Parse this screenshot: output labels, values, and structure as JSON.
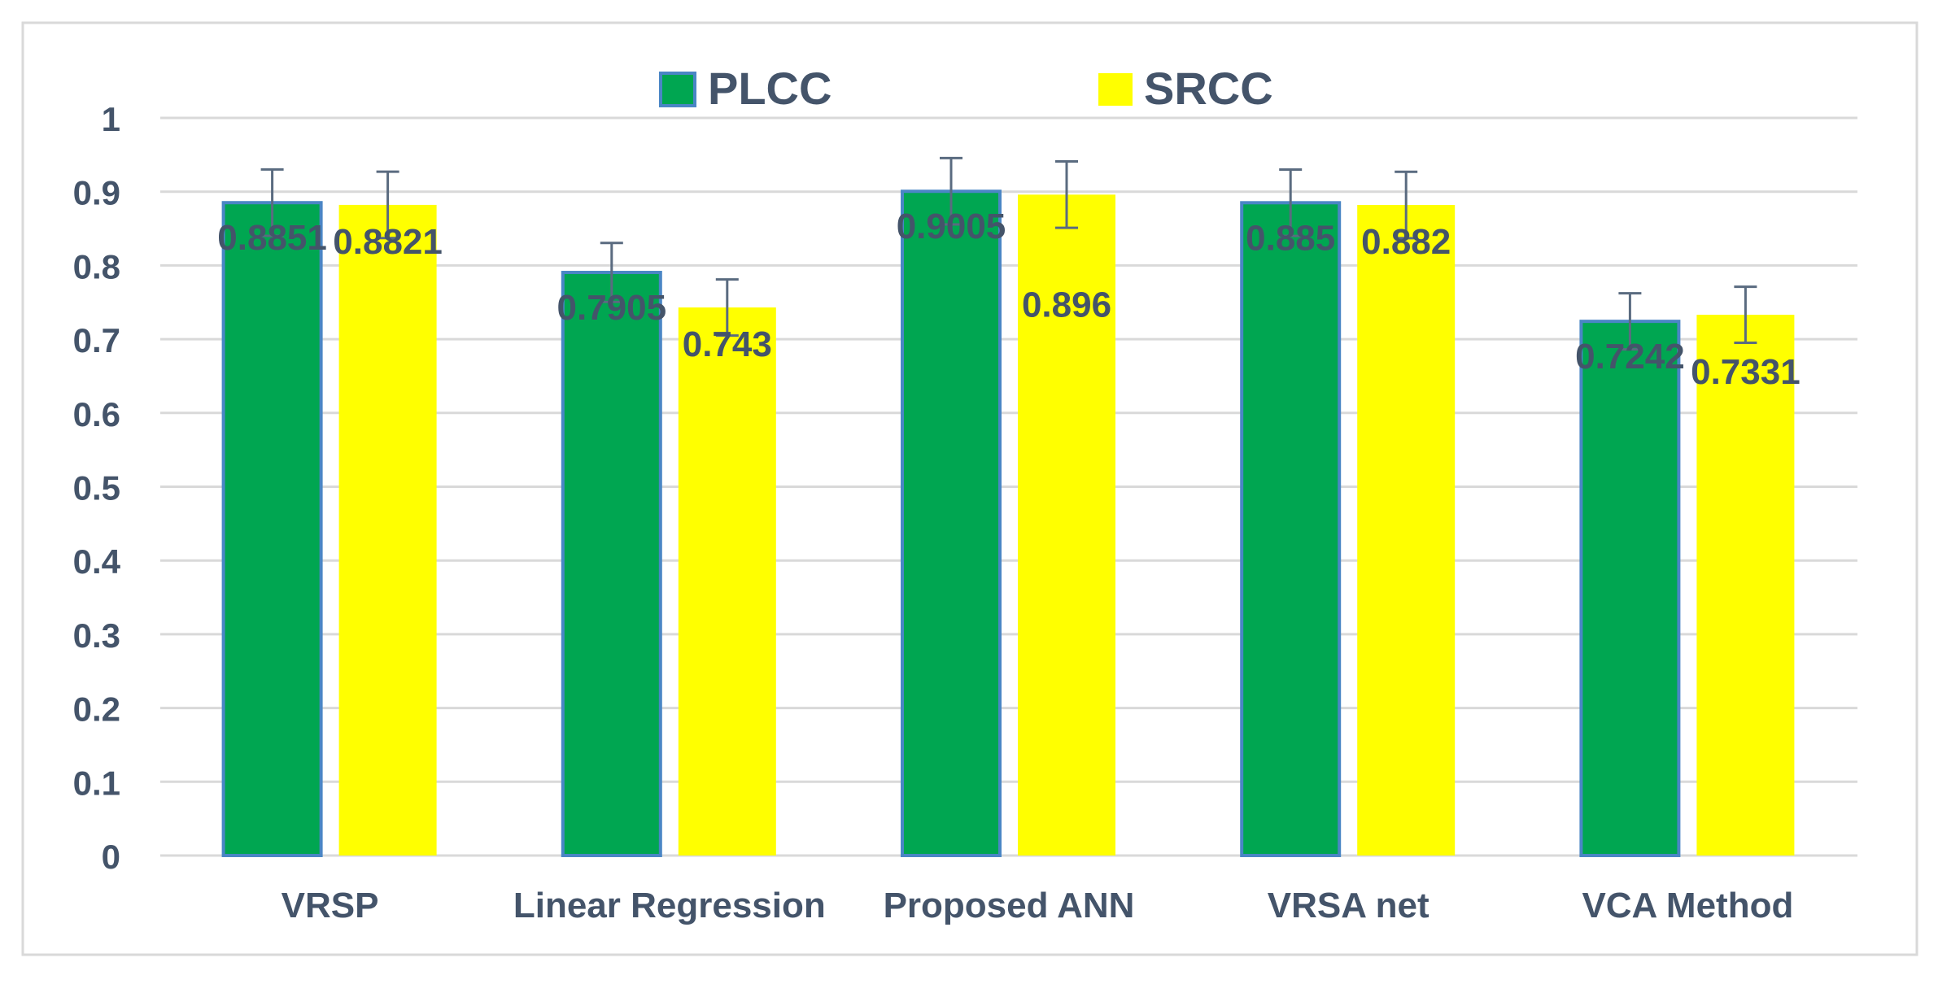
{
  "chart_data": {
    "type": "bar",
    "title": "",
    "xlabel": "",
    "ylabel": "",
    "categories": [
      "VRSP",
      "Linear Regression",
      "Proposed ANN",
      "VRSA net",
      "VCA Method"
    ],
    "series": [
      {
        "name": "PLCC",
        "color": "#00A651",
        "border_color": "#4A86C5",
        "values": [
          0.8851,
          0.7905,
          0.9005,
          0.885,
          0.7242
        ],
        "labels": [
          "0.8851",
          "0.7905",
          "0.9005",
          "0.885",
          "0.7242"
        ],
        "error": [
          0.045,
          0.04,
          0.045,
          0.045,
          0.038
        ]
      },
      {
        "name": "SRCC",
        "color": "#FFFF00",
        "border_color": "#FFFF00",
        "values": [
          0.8821,
          0.743,
          0.896,
          0.882,
          0.7331
        ],
        "labels": [
          "0.8821",
          "0.743",
          "0.896",
          "0.882",
          "0.7331"
        ],
        "error": [
          0.045,
          0.038,
          0.045,
          0.045,
          0.038
        ]
      }
    ],
    "ylim": [
      0,
      1
    ],
    "yticks": [
      "0",
      "0.1",
      "0.2",
      "0.3",
      "0.4",
      "0.5",
      "0.6",
      "0.7",
      "0.8",
      "0.9",
      "1"
    ],
    "grid": true,
    "legend": "top-center",
    "text_color": "#44546A",
    "gridline_color": "#D9D9D9",
    "error_bar_color": "#5A6B80"
  }
}
